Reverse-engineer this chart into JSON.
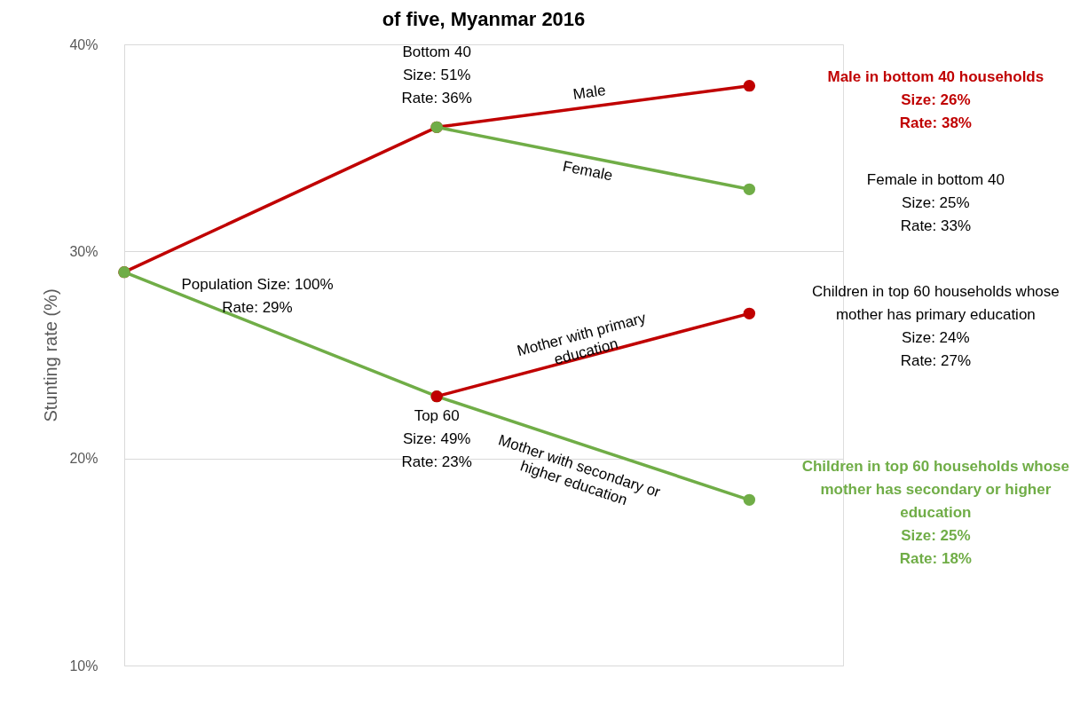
{
  "chart_data": {
    "type": "line",
    "title": "of five, Myanmar 2016",
    "ylabel": "Stunting rate (%)",
    "categories": [
      null,
      null,
      null
    ],
    "ylim": [
      10,
      40
    ],
    "yticks": [
      {
        "value": 10,
        "label": "10%"
      },
      {
        "value": 20,
        "label": "20%"
      },
      {
        "value": 30,
        "label": "30%"
      },
      {
        "value": 40,
        "label": "40%"
      }
    ],
    "tick_labels": "y",
    "grid": "y",
    "marker": "circle",
    "line_style": "solid",
    "series": [
      {
        "name": "Male",
        "color": "#c00000",
        "values": [
          29,
          36,
          38
        ]
      },
      {
        "name": "Mother with secondary or higher education",
        "color": "#70ad47",
        "values": [
          29,
          23,
          18
        ]
      },
      {
        "name": "Mother with primary education",
        "color": "#c00000",
        "values": [
          null,
          23,
          27
        ]
      },
      {
        "name": "Female",
        "color": "#70ad47",
        "values": [
          null,
          36,
          33
        ]
      }
    ],
    "annotations": [
      "Population Size: 100%\nRate: 29%",
      "Bottom 40\nSize: 51%\nRate: 36%",
      "Top 60\nSize: 49%\nRate: 23%",
      "Male in bottom 40 households\nSize: 26%\nRate: 38%",
      "Female in bottom 40\nSize: 25%\nRate: 33%",
      "Children in top 60 households whose\nmother has primary education\nSize: 24%\nRate: 27%",
      "Children in top 60 households whose\nmother has secondary or higher\neducation\nSize: 25%\nRate: 18%"
    ]
  }
}
